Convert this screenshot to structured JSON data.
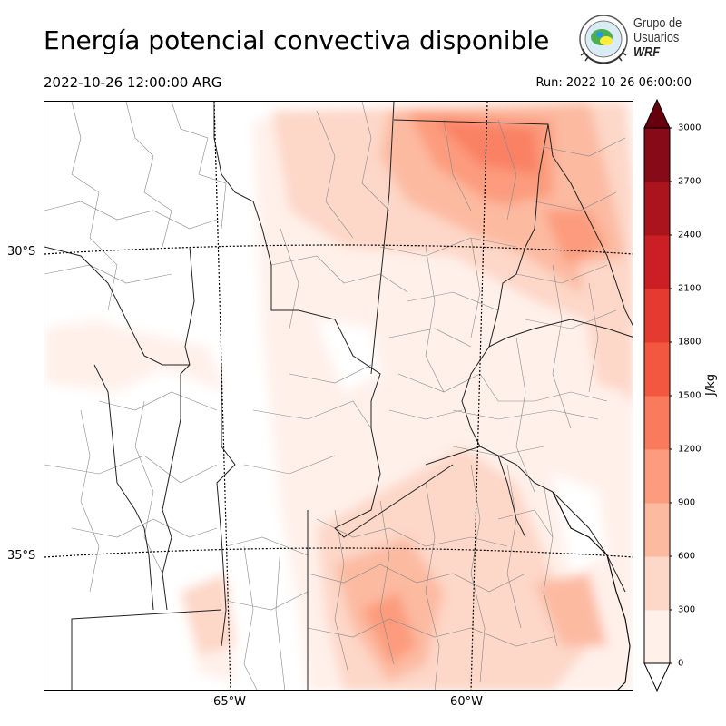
{
  "title": "Energía potencial convectiva disponible",
  "valid_time": "2022-10-26 12:00:00 ARG",
  "run_time": "Run: 2022-10-26 06:00:00",
  "logo": {
    "line1": "Grupo de",
    "line2": "Usuarios",
    "line3": "WRF"
  },
  "lat_labels": [
    "30°S",
    "35°S"
  ],
  "lon_labels": [
    "65°W",
    "60°W"
  ],
  "colorbar": {
    "unit": "J/kg",
    "ticks": [
      "0",
      "300",
      "600",
      "900",
      "1200",
      "1500",
      "1800",
      "2100",
      "2400",
      "2700",
      "3000"
    ],
    "colors": [
      "#fff0ea",
      "#fdd7c8",
      "#fcbaa1",
      "#fc9b7d",
      "#f97a5d",
      "#f3573f",
      "#e53a2f",
      "#cc1f25",
      "#ab141d",
      "#860a17"
    ],
    "under_color": "#ffffff",
    "over_color": "#67000d",
    "extend": "both"
  }
}
